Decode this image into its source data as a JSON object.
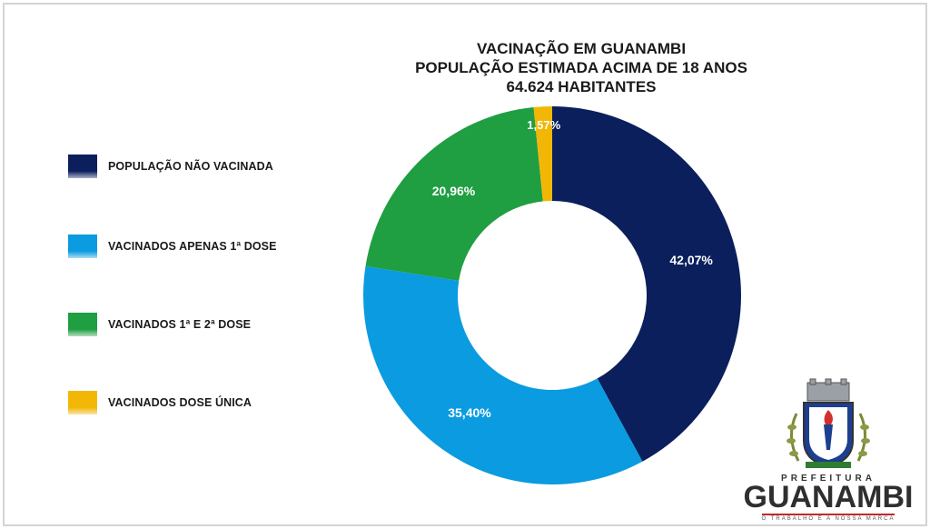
{
  "chart_data": {
    "type": "pie",
    "donut": true,
    "title_lines": [
      "VACINAÇÃO EM GUANAMBI",
      "POPULAÇÃO ESTIMADA ACIMA DE 18 ANOS",
      "64.624 HABITANTES"
    ],
    "series": [
      {
        "name": "POPULAÇÃO NÃO VACINADA",
        "value": 42.07,
        "label": "42,07%",
        "color": "#0b1f5c"
      },
      {
        "name": "VACINADOS APENAS 1ª DOSE",
        "value": 35.4,
        "label": "35,40%",
        "color": "#0a9be0"
      },
      {
        "name": "VACINADOS 1ª E 2ª DOSE",
        "value": 20.96,
        "label": "20,96%",
        "color": "#1f9e42"
      },
      {
        "name": "VACINADOS DOSE ÚNICA",
        "value": 1.57,
        "label": "1,57%",
        "color": "#f2b705"
      }
    ],
    "legend_position": "left"
  },
  "logo": {
    "top_text": "PREFEITURA",
    "name": "GUANAMBI",
    "slogan": "O TRABALHO É A NOSSA MARCA"
  }
}
